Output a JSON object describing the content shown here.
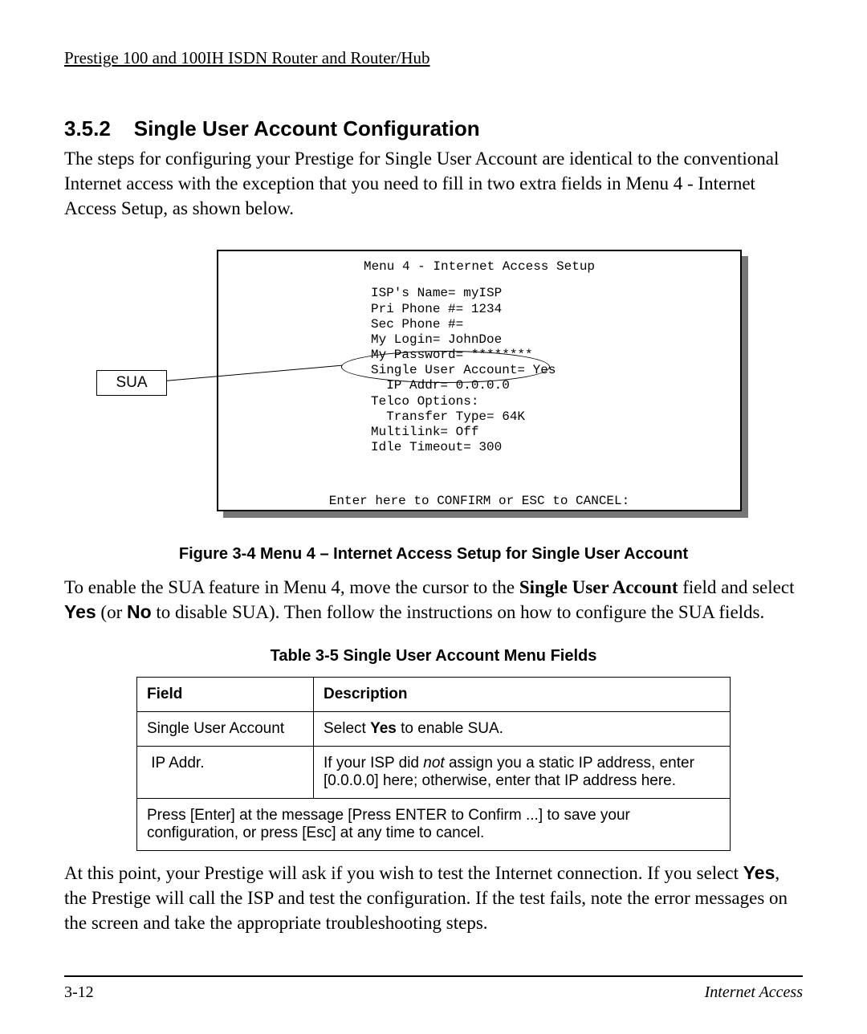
{
  "header": {
    "title": "Prestige 100 and 100IH ISDN Router and Router/Hub"
  },
  "section": {
    "number": "3.5.2",
    "title": "Single User Account Configuration",
    "intro": "The steps for configuring your Prestige for Single User Account are identical to the conventional Internet access with the exception that you need to fill in two extra fields in Menu 4 - Internet Access Setup, as shown below."
  },
  "figure": {
    "callout_label": "SUA",
    "terminal": {
      "title": "Menu 4 - Internet Access Setup",
      "lines": [
        "ISP's Name= myISP",
        "Pri Phone #= 1234",
        "Sec Phone #=",
        "My Login= JohnDoe",
        "My Password= ********",
        "Single User Account= Yes",
        "  IP Addr= 0.0.0.0",
        "Telco Options:",
        "  Transfer Type= 64K",
        "Multilink= Off",
        "Idle Timeout= 300"
      ],
      "footer": "Enter here to CONFIRM or ESC to CANCEL:"
    },
    "caption": "Figure 3-4 Menu 4 – Internet Access Setup for Single User Account"
  },
  "mid_para": {
    "pre": "To enable the SUA feature in Menu 4, move the cursor to the ",
    "field": "Single User Account",
    "mid1": " field and select ",
    "yes": "Yes",
    "mid2": " (or ",
    "no": "No",
    "post": " to disable SUA). Then follow the instructions on how to configure the SUA fields."
  },
  "table": {
    "caption": "Table 3-5 Single User Account Menu Fields",
    "headers": {
      "field": "Field",
      "desc": "Description"
    },
    "rows": [
      {
        "field": "Single User Account",
        "desc_pre": "Select ",
        "desc_bold": "Yes",
        "desc_post": " to enable SUA."
      },
      {
        "field": " IP Addr.",
        "desc_pre": "If your ISP did ",
        "desc_italic": "not",
        "desc_post": " assign you a static IP address, enter [0.0.0.0] here; otherwise, enter that IP address here."
      }
    ],
    "footer_row": "Press [Enter] at the message [Press ENTER to Confirm ...] to save your configuration, or press [Esc] at any time to cancel."
  },
  "closing": {
    "pre": "At this point, your Prestige will ask if you wish to test the Internet connection. If you select ",
    "yes": "Yes",
    "post": ", the Prestige will call the ISP and test the configuration.  If the test fails, note the error messages on the screen and take the appropriate troubleshooting steps."
  },
  "footer": {
    "page": "3-12",
    "section": "Internet Access"
  }
}
